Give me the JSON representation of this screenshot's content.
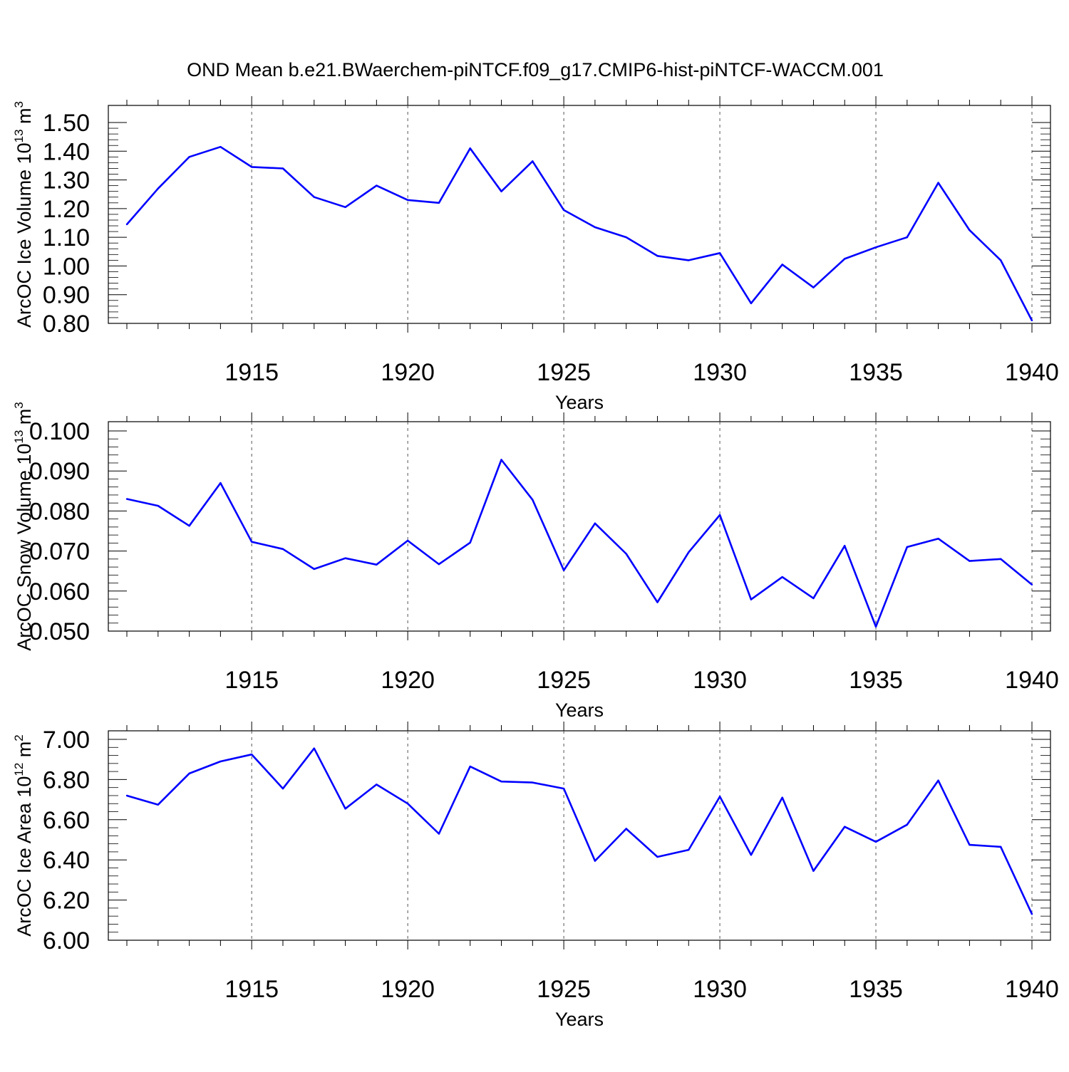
{
  "title": "OND Mean b.e21.BWaerchem-piNTCF.f09_g17.CMIP6-hist-piNTCF-WACCM.001",
  "colors": {
    "line": "#0000ff",
    "axis": "#000000",
    "grid": "#555555"
  },
  "chart_data": [
    {
      "type": "line",
      "ylabel_main": "ArcOC Ice Volume 10",
      "ylabel_exp": "13",
      "ylabel_unit": " m",
      "ylabel_unit_exp": "3",
      "xlabel": "Years",
      "xlim": [
        1911,
        1940
      ],
      "ylim": [
        0.8,
        1.5
      ],
      "yticks": [
        "0.80",
        "0.90",
        "1.00",
        "1.10",
        "1.20",
        "1.30",
        "1.40",
        "1.50"
      ],
      "xticks": [
        "1915",
        "1920",
        "1925",
        "1930",
        "1935",
        "1940"
      ],
      "grid": "vertical dashed at labeled x ticks",
      "x": [
        1911,
        1912,
        1913,
        1914,
        1915,
        1916,
        1917,
        1918,
        1919,
        1920,
        1921,
        1922,
        1923,
        1924,
        1925,
        1926,
        1927,
        1928,
        1929,
        1930,
        1931,
        1932,
        1933,
        1934,
        1935,
        1936,
        1937,
        1938,
        1939,
        1940
      ],
      "values": [
        1.145,
        1.27,
        1.38,
        1.415,
        1.345,
        1.34,
        1.24,
        1.205,
        1.28,
        1.23,
        1.22,
        1.41,
        1.26,
        1.365,
        1.195,
        1.135,
        1.1,
        1.035,
        1.02,
        1.045,
        0.87,
        1.005,
        0.925,
        1.025,
        1.065,
        1.1,
        1.29,
        1.125,
        1.02,
        0.81
      ]
    },
    {
      "type": "line",
      "ylabel_main": "ArcOC Snow Volume 10",
      "ylabel_exp": "13",
      "ylabel_unit": " m",
      "ylabel_unit_exp": "3",
      "xlabel": "Years",
      "xlim": [
        1911,
        1940
      ],
      "ylim": [
        0.05,
        0.1
      ],
      "yticks": [
        "0.050",
        "0.060",
        "0.070",
        "0.080",
        "0.090",
        "0.100"
      ],
      "xticks": [
        "1915",
        "1920",
        "1925",
        "1930",
        "1935",
        "1940"
      ],
      "grid": "vertical dashed at labeled x ticks",
      "x": [
        1911,
        1912,
        1913,
        1914,
        1915,
        1916,
        1917,
        1918,
        1919,
        1920,
        1921,
        1922,
        1923,
        1924,
        1925,
        1926,
        1927,
        1928,
        1929,
        1930,
        1931,
        1932,
        1933,
        1934,
        1935,
        1936,
        1937,
        1938,
        1939,
        1940
      ],
      "values": [
        0.083,
        0.0813,
        0.0763,
        0.087,
        0.0723,
        0.0705,
        0.0655,
        0.0682,
        0.0666,
        0.0726,
        0.0667,
        0.0721,
        0.0928,
        0.0828,
        0.0652,
        0.0769,
        0.0693,
        0.0572,
        0.0697,
        0.079,
        0.0579,
        0.0635,
        0.0582,
        0.0713,
        0.0511,
        0.071,
        0.0731,
        0.0675,
        0.068,
        0.0616
      ]
    },
    {
      "type": "line",
      "ylabel_main": "ArcOC Ice Area 10",
      "ylabel_exp": "12",
      "ylabel_unit": " m",
      "ylabel_unit_exp": "2",
      "xlabel": "Years",
      "xlim": [
        1911,
        1940
      ],
      "ylim": [
        6.0,
        7.0
      ],
      "yticks": [
        "6.00",
        "6.20",
        "6.40",
        "6.60",
        "6.80",
        "7.00"
      ],
      "xticks": [
        "1915",
        "1920",
        "1925",
        "1930",
        "1935",
        "1940"
      ],
      "grid": "vertical dashed at labeled x ticks",
      "x": [
        1911,
        1912,
        1913,
        1914,
        1915,
        1916,
        1917,
        1918,
        1919,
        1920,
        1921,
        1922,
        1923,
        1924,
        1925,
        1926,
        1927,
        1928,
        1929,
        1930,
        1931,
        1932,
        1933,
        1934,
        1935,
        1936,
        1937,
        1938,
        1939,
        1940
      ],
      "values": [
        6.72,
        6.675,
        6.83,
        6.89,
        6.925,
        6.755,
        6.955,
        6.655,
        6.775,
        6.68,
        6.53,
        6.865,
        6.79,
        6.785,
        6.755,
        6.395,
        6.555,
        6.415,
        6.45,
        6.715,
        6.425,
        6.71,
        6.345,
        6.565,
        6.49,
        6.575,
        6.795,
        6.475,
        6.465,
        6.13
      ]
    }
  ]
}
